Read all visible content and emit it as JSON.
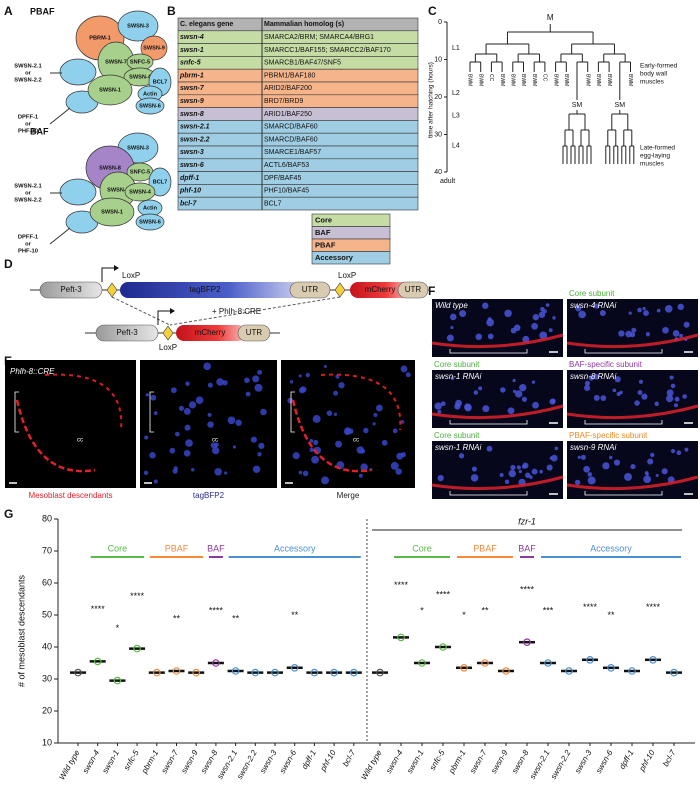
{
  "panel_labels": [
    "A",
    "B",
    "C",
    "D",
    "E",
    "F",
    "G"
  ],
  "panel_a": {
    "pbaf": {
      "title": "PBAF",
      "subunits": [
        "PBRM-1",
        "SWSN-3",
        "SWSN-9",
        "SWSN-7",
        "SNFC-5",
        "SWSN-4",
        "BCL7",
        "SWSN-1",
        "Actin",
        "SWSN-6"
      ],
      "side": [
        "SWSN-2.1",
        "or",
        "SWSN-2.2",
        "DPFF-1",
        "or",
        "PHF-10"
      ]
    },
    "baf": {
      "title": "BAF",
      "subunits": [
        "SWSN-3",
        "SWSN-8",
        "SNFC-5",
        "BCL7",
        "SWSN-7",
        "SWSN-4",
        "Actin",
        "SWSN-1",
        "SWSN-6"
      ],
      "side": [
        "SWSN-2.1",
        "or",
        "SWSN-2.2",
        "DPFF-1",
        "or",
        "PHF-10"
      ]
    }
  },
  "panel_b": {
    "header": [
      "C. elegans gene",
      "Mammalian homolog (s)"
    ],
    "header_color": "#b3b3b3",
    "rows": [
      {
        "gene": "swsn-4",
        "homolog": "SMARCA2/BRM; SMARCA4/BRG1",
        "color": "#c5dca4"
      },
      {
        "gene": "swsn-1",
        "homolog": "SMARCC1/BAF155; SMARCC2/BAF170",
        "color": "#c5dca4"
      },
      {
        "gene": "snfc-5",
        "homolog": "SMARCB1/BAF47/SNF5",
        "color": "#c5dca4"
      },
      {
        "gene": "pbrm-1",
        "homolog": "PBRM1/BAF180",
        "color": "#f5b48a"
      },
      {
        "gene": "swsn-7",
        "homolog": "ARID2/BAF200",
        "color": "#f5b48a"
      },
      {
        "gene": "swsn-9",
        "homolog": "BRD7/BRD9",
        "color": "#f5b48a"
      },
      {
        "gene": "swsn-8",
        "homolog": "ARID1/BAF250",
        "color": "#c7bfd4"
      },
      {
        "gene": "swsn-2.1",
        "homolog": "SMARCD/BAF60",
        "color": "#9fcde3"
      },
      {
        "gene": "swsn-2.2",
        "homolog": "SMARCD/BAF60",
        "color": "#9fcde3"
      },
      {
        "gene": "swsn-3",
        "homolog": "SMARCE1/BAF57",
        "color": "#9fcde3"
      },
      {
        "gene": "swsn-6",
        "homolog": "ACTL6/BAF53",
        "color": "#9fcde3"
      },
      {
        "gene": "dpff-1",
        "homolog": "DPF/BAF45",
        "color": "#9fcde3"
      },
      {
        "gene": "phf-10",
        "homolog": "PHF10/BAF45",
        "color": "#9fcde3"
      },
      {
        "gene": "bcl-7",
        "homolog": "BCL7",
        "color": "#9fcde3"
      }
    ],
    "legend": [
      {
        "label": "Core",
        "color": "#c5dca4"
      },
      {
        "label": "BAF",
        "color": "#c7bfd4"
      },
      {
        "label": "PBAF",
        "color": "#f5b48a"
      },
      {
        "label": "Accessory",
        "color": "#9fcde3"
      }
    ]
  },
  "panel_c": {
    "y_label": "time after hatching (hours)",
    "yticks": [
      0,
      10,
      20,
      30,
      40
    ],
    "stages": [
      "L1",
      "L2",
      "L3",
      "L4",
      "adult"
    ],
    "root": "M",
    "leaves": [
      "BWM",
      "BWM",
      "CC",
      "BWM",
      "BWM",
      "BWM",
      "BWM",
      "CC",
      "BWM",
      "BWM",
      "SM",
      "BWM",
      "BWM",
      "BWM",
      "SM",
      "BWM"
    ],
    "notes_early": [
      "Early-formed",
      "body wall",
      "muscles"
    ],
    "notes_late": [
      "Late-formed",
      "egg-laying",
      "muscles"
    ]
  },
  "panel_d": {
    "promoter": "Peft-3",
    "lox": "LoxP",
    "reporter1": "tagBFP2",
    "utr": "UTR",
    "reporter2": "mCherry",
    "cre": "+ Phlh-8:CRE"
  },
  "panel_e": {
    "strain": "Phlh-8::CRE",
    "cell": "cc",
    "captions": [
      "Mesoblast descendants",
      "tagBFP2",
      "Merge"
    ],
    "caption_colors": [
      "#e0202a",
      "#2c2c9c",
      "#222222"
    ]
  },
  "panel_f": {
    "cells": [
      {
        "label": "Wild type"
      },
      {
        "header": "Core subunit",
        "header_color": "#4caf3c",
        "label": "swsn-4 RNAi"
      },
      {
        "header": "Core subunit",
        "header_color": "#4caf3c",
        "label": "swsn-1 RNAi"
      },
      {
        "header": "BAF-specific subunit",
        "header_color": "#8e3a9d",
        "label": "swsn-8 RNAi"
      },
      {
        "header": "Core subunit",
        "header_color": "#4caf3c",
        "label": "swsn-1 RNAi"
      },
      {
        "header": "PBAF-specific subunit",
        "header_color": "#f08a24",
        "label": "swsn-9 RNAi"
      }
    ]
  },
  "chart_data": {
    "type": "dot",
    "y_label": "# of mesoblast descendants",
    "ylim": [
      10,
      80
    ],
    "yticks": [
      10,
      20,
      30,
      40,
      50,
      60,
      70,
      80
    ],
    "categories": [
      "Wild type",
      "swsn-4",
      "swsn-1",
      "snfc-5",
      "pbrm-1",
      "swsn-7",
      "swsn-9",
      "swsn-8",
      "swsn-2.1",
      "swsn-2.2",
      "swsn-3",
      "swsn-6",
      "dpff-1",
      "phf-10",
      "bcl-7",
      "Wild type",
      "swsn-4",
      "swsn-1",
      "snfc-5",
      "pbrm-1",
      "swsn-7",
      "swsn-9",
      "swsn-8",
      "swsn-2.1",
      "swsn-2.2",
      "swsn-3",
      "swsn-6",
      "dpff-1",
      "phf-10",
      "bcl-7"
    ],
    "values": [
      32,
      35.5,
      29.5,
      39.5,
      32,
      32.5,
      32,
      35,
      32.5,
      32,
      32,
      33.5,
      32,
      32,
      32,
      32,
      43,
      35,
      40,
      33.5,
      35,
      32.5,
      41.5,
      35,
      32.5,
      36,
      33.5,
      32.5,
      36,
      32
    ],
    "significance": [
      null,
      "****",
      "*",
      "****",
      null,
      "**",
      null,
      "****",
      "**",
      null,
      null,
      "**",
      null,
      null,
      null,
      null,
      "****",
      "*",
      "****",
      "*",
      "**",
      null,
      "****",
      "***",
      null,
      "****",
      "**",
      null,
      "****",
      null
    ],
    "colors": [
      "#555555",
      "#5ab947",
      "#5ab947",
      "#5ab947",
      "#f7893b",
      "#f7893b",
      "#f7893b",
      "#8e3a9d",
      "#4a8fd4",
      "#4a8fd4",
      "#4a8fd4",
      "#4a8fd4",
      "#4a8fd4",
      "#4a8fd4",
      "#4a8fd4",
      "#555555",
      "#5ab947",
      "#5ab947",
      "#5ab947",
      "#f7893b",
      "#f7893b",
      "#f7893b",
      "#8e3a9d",
      "#4a8fd4",
      "#4a8fd4",
      "#4a8fd4",
      "#4a8fd4",
      "#4a8fd4",
      "#4a8fd4",
      "#4a8fd4"
    ],
    "groups": [
      {
        "label": "Core",
        "color": "#5ab947",
        "from": 1,
        "to": 3
      },
      {
        "label": "PBAF",
        "color": "#f7893b",
        "from": 4,
        "to": 6
      },
      {
        "label": "BAF",
        "color": "#8e3a9d",
        "from": 7,
        "to": 7
      },
      {
        "label": "Accessory",
        "color": "#4a8fd4",
        "from": 8,
        "to": 14
      },
      {
        "label": "Core",
        "color": "#5ab947",
        "from": 16,
        "to": 18
      },
      {
        "label": "PBAF",
        "color": "#f7893b",
        "from": 19,
        "to": 21
      },
      {
        "label": "BAF",
        "color": "#8e3a9d",
        "from": 22,
        "to": 22
      },
      {
        "label": "Accessory",
        "color": "#4a8fd4",
        "from": 23,
        "to": 29
      }
    ],
    "super_group": {
      "label": "fzr-1",
      "from": 15,
      "to": 29
    }
  }
}
